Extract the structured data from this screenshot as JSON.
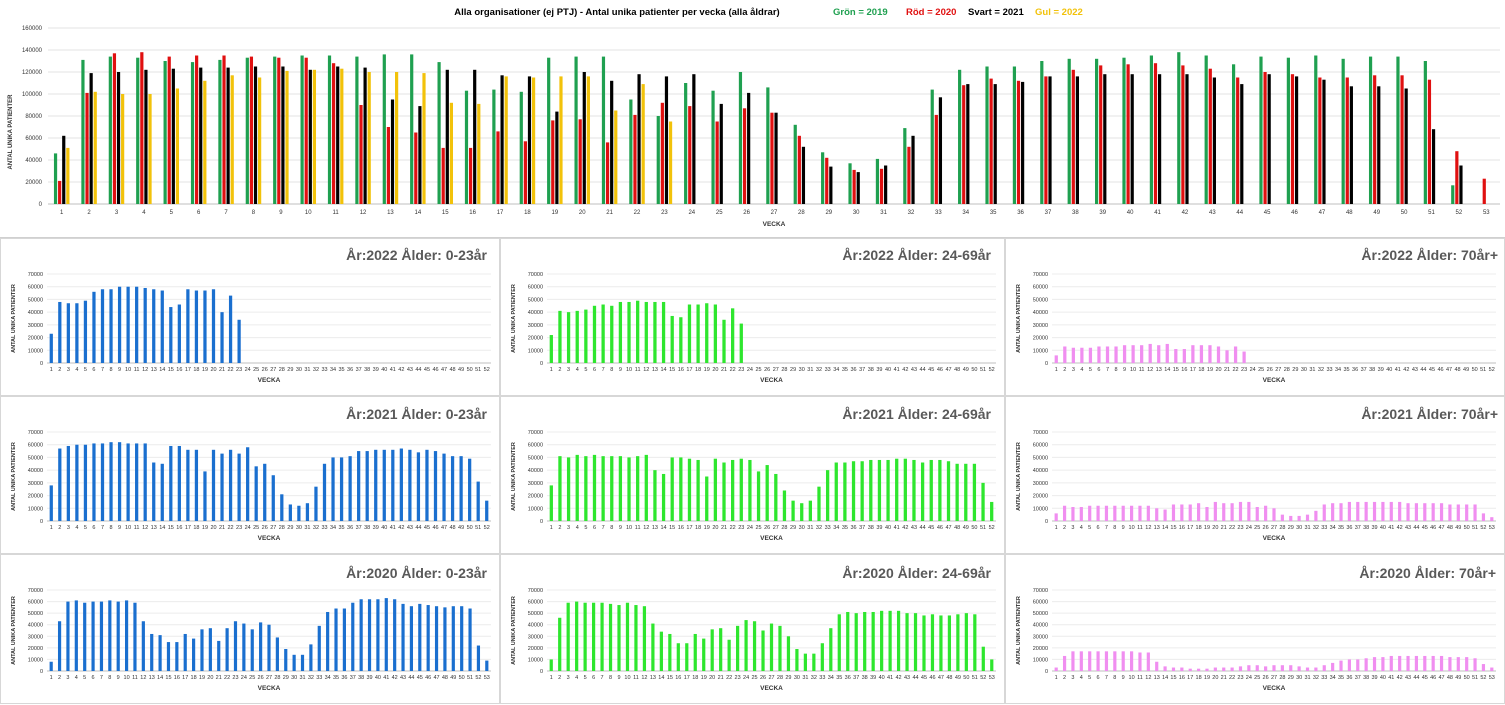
{
  "main_chart": {
    "title": "Alla organisationer (ej PTJ)   -   Antal unika patienter per vecka (alla åldrar)",
    "legend": [
      {
        "text": "Grön = 2019",
        "color": "#1fa050"
      },
      {
        "text": "Röd = 2020",
        "color": "#e01010"
      },
      {
        "text": "Svart = 2021",
        "color": "#000000"
      },
      {
        "text": "Gul = 2022",
        "color": "#f2c20a"
      }
    ],
    "xlabel": "VECKA",
    "ylabel": "ANTAL UNIKA PATIENTER"
  },
  "small_charts_labels": {
    "xlabel": "VECKA",
    "ylabel": "ANTAL UNIKA PATIENTER"
  },
  "chart_data": [
    {
      "id": "main",
      "type": "bar",
      "title": "Alla organisationer (ej PTJ)   -   Antal unika patienter per vecka (alla åldrar)",
      "xlabel": "VECKA",
      "ylabel": "ANTAL UNIKA PATIENTER",
      "ylim": [
        0,
        160000
      ],
      "yticks": [
        0,
        20000,
        40000,
        60000,
        80000,
        100000,
        120000,
        140000,
        160000
      ],
      "categories": [
        "1",
        "2",
        "3",
        "4",
        "5",
        "6",
        "7",
        "8",
        "9",
        "10",
        "11",
        "12",
        "13",
        "14",
        "15",
        "16",
        "17",
        "18",
        "19",
        "20",
        "21",
        "22",
        "23",
        "24",
        "25",
        "26",
        "27",
        "28",
        "29",
        "30",
        "31",
        "32",
        "33",
        "34",
        "35",
        "36",
        "37",
        "38",
        "39",
        "40",
        "41",
        "42",
        "43",
        "44",
        "45",
        "46",
        "47",
        "48",
        "49",
        "50",
        "51",
        "52",
        "53"
      ],
      "series": [
        {
          "name": "2019",
          "color": "#1fa050",
          "values": [
            46000,
            131000,
            134000,
            133000,
            130000,
            129000,
            131000,
            133000,
            134000,
            135000,
            135000,
            134000,
            136000,
            136000,
            129000,
            103000,
            104000,
            102000,
            133000,
            134000,
            134000,
            95000,
            80000,
            110000,
            103000,
            120000,
            106000,
            72000,
            47000,
            37000,
            41000,
            69000,
            104000,
            122000,
            125000,
            125000,
            130000,
            132000,
            132000,
            133000,
            135000,
            138000,
            135000,
            127000,
            134000,
            133000,
            135000,
            132000,
            134000,
            134000,
            130000,
            17000,
            null
          ]
        },
        {
          "name": "2020",
          "color": "#e01010",
          "values": [
            21000,
            101000,
            137000,
            138000,
            134000,
            135000,
            135000,
            134000,
            133000,
            133000,
            128000,
            90000,
            70000,
            65000,
            51000,
            51000,
            66000,
            57000,
            76000,
            77000,
            56000,
            81000,
            92000,
            89000,
            75000,
            87000,
            83000,
            62000,
            42000,
            31000,
            32000,
            52000,
            81000,
            108000,
            114000,
            112000,
            116000,
            122000,
            126000,
            127000,
            128000,
            126000,
            123000,
            115000,
            120000,
            118000,
            115000,
            115000,
            117000,
            117000,
            113000,
            48000,
            23000
          ]
        },
        {
          "name": "2021",
          "color": "#000000",
          "values": [
            62000,
            119000,
            120000,
            122000,
            123000,
            124000,
            124000,
            125000,
            125000,
            122000,
            125000,
            124000,
            95000,
            89000,
            122000,
            122000,
            117000,
            116000,
            84000,
            120000,
            112000,
            118000,
            116000,
            118000,
            91000,
            101000,
            83000,
            52000,
            34000,
            29000,
            35000,
            62000,
            97000,
            109000,
            109000,
            111000,
            116000,
            116000,
            118000,
            118000,
            118000,
            118000,
            115000,
            109000,
            118000,
            116000,
            113000,
            107000,
            107000,
            105000,
            68000,
            35000,
            null
          ]
        },
        {
          "name": "2022",
          "color": "#f2c20a",
          "values": [
            51000,
            102000,
            100000,
            100000,
            105000,
            112000,
            117000,
            115000,
            121000,
            122000,
            123000,
            120000,
            120000,
            119000,
            92000,
            91000,
            116000,
            115000,
            116000,
            116000,
            85000,
            109000,
            75000,
            null,
            null,
            null,
            null,
            null,
            null,
            null,
            null,
            null,
            null,
            null,
            null,
            null,
            null,
            null,
            null,
            null,
            null,
            null,
            null,
            null,
            null,
            null,
            null,
            null,
            null,
            null,
            null,
            null,
            null
          ]
        }
      ]
    },
    {
      "id": "r1c1",
      "type": "bar",
      "title": "År:2022   Ålder: 0-23år",
      "color": "#1a6fcf",
      "xlabel": "VECKA",
      "ylabel": "ANTAL UNIKA PATIENTER",
      "ylim": [
        0,
        70000
      ],
      "x_max": 52,
      "values": [
        23000,
        48000,
        47000,
        47000,
        49000,
        56000,
        58000,
        58000,
        60000,
        60000,
        60000,
        59000,
        58000,
        57000,
        44000,
        46000,
        58000,
        57000,
        57000,
        58000,
        40000,
        53000,
        34000
      ]
    },
    {
      "id": "r1c2",
      "type": "bar",
      "title": "År:2022   Ålder: 24-69år",
      "color": "#2ee62e",
      "xlabel": "VECKA",
      "ylabel": "ANTAL UNIKA PATIENTER",
      "ylim": [
        0,
        70000
      ],
      "x_max": 52,
      "values": [
        22000,
        41000,
        40000,
        41000,
        42000,
        45000,
        46000,
        45000,
        48000,
        48000,
        49000,
        48000,
        48000,
        48000,
        37000,
        36000,
        46000,
        46000,
        47000,
        46000,
        34000,
        43000,
        31000
      ]
    },
    {
      "id": "r1c3",
      "type": "bar",
      "title": "År:2022   Ålder: 70år+",
      "color": "#f08ef0",
      "xlabel": "VECKA",
      "ylabel": "ANTAL UNIKA PATIENTER",
      "ylim": [
        0,
        70000
      ],
      "x_max": 52,
      "values": [
        6000,
        13000,
        12000,
        12000,
        12000,
        13000,
        13000,
        13000,
        14000,
        14000,
        14000,
        15000,
        14000,
        15000,
        11000,
        11000,
        14000,
        14000,
        14000,
        13000,
        10000,
        13000,
        9000
      ]
    },
    {
      "id": "r2c1",
      "type": "bar",
      "title": "År:2021   Ålder: 0-23år",
      "color": "#1a6fcf",
      "xlabel": "VECKA",
      "ylabel": "ANTAL UNIKA PATIENTER",
      "ylim": [
        0,
        70000
      ],
      "x_max": 52,
      "values": [
        28000,
        57000,
        59000,
        60000,
        60000,
        61000,
        61000,
        62000,
        62000,
        61000,
        61000,
        61000,
        46000,
        45000,
        59000,
        59000,
        56000,
        56000,
        39000,
        56000,
        53000,
        56000,
        53000,
        58000,
        43000,
        45000,
        36000,
        21000,
        13000,
        12000,
        14000,
        27000,
        45000,
        50000,
        50000,
        51000,
        55000,
        55000,
        56000,
        56000,
        56000,
        57000,
        56000,
        54000,
        56000,
        55000,
        53000,
        51000,
        51000,
        49000,
        31000,
        16000
      ]
    },
    {
      "id": "r2c2",
      "type": "bar",
      "title": "År:2021   Ålder: 24-69år",
      "color": "#2ee62e",
      "xlabel": "VECKA",
      "ylabel": "ANTAL UNIKA PATIENTER",
      "ylim": [
        0,
        70000
      ],
      "x_max": 52,
      "values": [
        28000,
        51000,
        50000,
        52000,
        51000,
        52000,
        51000,
        51000,
        51000,
        50000,
        51000,
        52000,
        40000,
        37000,
        50000,
        50000,
        49000,
        48000,
        35000,
        49000,
        46000,
        48000,
        49000,
        48000,
        39000,
        44000,
        37000,
        24000,
        16000,
        14000,
        16000,
        27000,
        40000,
        46000,
        46000,
        47000,
        47000,
        48000,
        48000,
        48000,
        49000,
        49000,
        48000,
        46000,
        48000,
        48000,
        47000,
        45000,
        45000,
        45000,
        30000,
        15000
      ]
    },
    {
      "id": "r2c3",
      "type": "bar",
      "title": "År:2021   Ålder: 70år+",
      "color": "#f08ef0",
      "xlabel": "VECKA",
      "ylabel": "ANTAL UNIKA PATIENTER",
      "ylim": [
        0,
        70000
      ],
      "x_max": 53,
      "values": [
        6000,
        12000,
        11000,
        11000,
        12000,
        12000,
        12000,
        12000,
        12000,
        12000,
        12000,
        12000,
        10000,
        9000,
        13000,
        13000,
        13000,
        14000,
        11000,
        15000,
        14000,
        14000,
        15000,
        15000,
        11000,
        12000,
        10000,
        5000,
        4000,
        4000,
        5000,
        8000,
        13000,
        14000,
        14000,
        15000,
        15000,
        15000,
        15000,
        15000,
        15000,
        15000,
        14000,
        14000,
        14000,
        14000,
        14000,
        13000,
        13000,
        13000,
        13000,
        6000,
        3000
      ]
    },
    {
      "id": "r3c1",
      "type": "bar",
      "title": "År:2020   Ålder: 0-23år",
      "color": "#1a6fcf",
      "xlabel": "VECKA",
      "ylabel": "ANTAL UNIKA PATIENTER",
      "ylim": [
        0,
        70000
      ],
      "x_max": 53,
      "values": [
        8000,
        43000,
        60000,
        61000,
        59000,
        60000,
        60000,
        61000,
        60000,
        61000,
        59000,
        43000,
        32000,
        31000,
        25000,
        25000,
        32000,
        28000,
        36000,
        37000,
        26000,
        37000,
        43000,
        41000,
        36000,
        42000,
        40000,
        29000,
        19000,
        14000,
        14000,
        23000,
        39000,
        51000,
        54000,
        54000,
        59000,
        62000,
        62000,
        62000,
        63000,
        62000,
        58000,
        56000,
        58000,
        57000,
        56000,
        55000,
        56000,
        56000,
        54000,
        22000,
        9000
      ]
    },
    {
      "id": "r3c2",
      "type": "bar",
      "title": "År:2020   Ålder: 24-69år",
      "color": "#2ee62e",
      "xlabel": "VECKA",
      "ylabel": "ANTAL UNIKA PATIENTER",
      "ylim": [
        0,
        70000
      ],
      "x_max": 53,
      "values": [
        10000,
        46000,
        59000,
        60000,
        59000,
        59000,
        59000,
        58000,
        57000,
        59000,
        57000,
        56000,
        41000,
        34000,
        32000,
        24000,
        24000,
        32000,
        28000,
        36000,
        37000,
        27000,
        39000,
        44000,
        43000,
        35000,
        41000,
        39000,
        30000,
        19000,
        15000,
        15000,
        24000,
        37000,
        49000,
        51000,
        50000,
        51000,
        51000,
        52000,
        52000,
        52000,
        50000,
        50000,
        48000,
        49000,
        48000,
        48000,
        49000,
        50000,
        49000,
        21000,
        10000
      ]
    },
    {
      "id": "r3c3",
      "type": "bar",
      "title": "År:2020   Ålder: 70år+",
      "color": "#f08ef0",
      "xlabel": "VECKA",
      "ylabel": "ANTAL UNIKA PATIENTER",
      "ylim": [
        0,
        70000
      ],
      "x_max": 53,
      "values": [
        3000,
        13000,
        17000,
        17000,
        17000,
        17000,
        17000,
        17000,
        17000,
        17000,
        16000,
        16000,
        8000,
        4000,
        3000,
        3000,
        2000,
        2000,
        2000,
        3000,
        3000,
        3000,
        4000,
        5000,
        5000,
        4000,
        5000,
        5000,
        5000,
        4000,
        3000,
        3000,
        5000,
        7000,
        9000,
        10000,
        10000,
        11000,
        12000,
        12000,
        13000,
        13000,
        13000,
        13000,
        13000,
        13000,
        13000,
        12000,
        12000,
        12000,
        11000,
        6000,
        3000
      ]
    }
  ]
}
